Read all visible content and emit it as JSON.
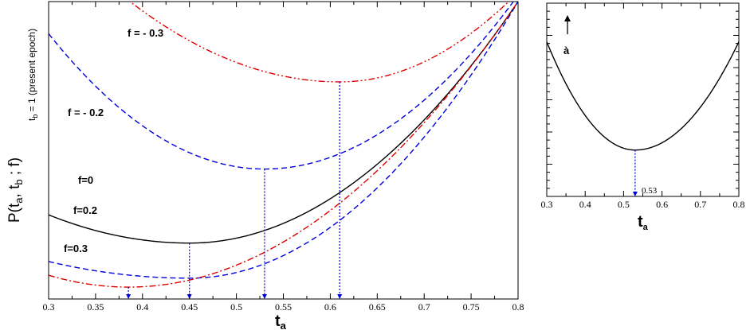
{
  "chart_data": [
    {
      "type": "line",
      "xlabel": "t",
      "xlabel_sub": "a",
      "ylabel": "P(t",
      "ylabel_parts": [
        "a",
        ", t",
        "b",
        " ; f)"
      ],
      "ylabel_note": "t",
      "ylabel_note_sub": "b",
      "ylabel_note_rest": "= 1 (present epoch)",
      "xlim": [
        0.3,
        0.8
      ],
      "ylim": [
        0,
        1
      ],
      "xticks": [
        "0.3",
        "0.35",
        "0.4",
        "0.45",
        "0.5",
        "0.55",
        "0.6",
        "0.65",
        "0.7",
        "0.75",
        "0.8"
      ],
      "grid": false,
      "series": [
        {
          "name": "f = - 0.3",
          "color": "#dd0000",
          "style": "dashdotdot",
          "min_x": 0.61,
          "min_y": 0.73,
          "left_y": 1.25,
          "right_x": 0.79,
          "right_y": 1.0
        },
        {
          "name": "f = - 0.2",
          "color": "#0000dd",
          "style": "dashed",
          "min_x": 0.53,
          "min_y": 0.437,
          "left_y": 0.892,
          "right_x": 0.795,
          "right_y": 1.0
        },
        {
          "name": "f=0",
          "color": "#000000",
          "style": "solid",
          "min_x": 0.45,
          "min_y": 0.188,
          "left_y": 0.283,
          "right_x": 0.8,
          "right_y": 1.0
        },
        {
          "name": "f=0.2",
          "color": "#0000dd",
          "style": "dashed",
          "min_x": 0.45,
          "min_y": 0.07,
          "left_y": 0.126,
          "right_x": 0.8,
          "right_y": 1.0
        },
        {
          "name": "f=0.3",
          "color": "#dd0000",
          "style": "dashdot",
          "min_x": 0.385,
          "min_y": 0.04,
          "left_y": 0.08,
          "right_x": 0.8,
          "right_y": 1.0
        }
      ],
      "minima_markers_x": [
        0.385,
        0.45,
        0.53,
        0.61
      ]
    },
    {
      "type": "line",
      "xlabel": "t",
      "xlabel_sub": "a",
      "xlim": [
        0.3,
        0.8
      ],
      "ylim": [
        0,
        1
      ],
      "xticks": [
        "0.3",
        "0.4",
        "0.5",
        "0.6",
        "0.7",
        "0.8"
      ],
      "grid": false,
      "series": [
        {
          "name": "",
          "color": "#000000",
          "style": "solid",
          "min_x": 0.53,
          "min_y": 0.24,
          "left_y": 0.8,
          "right_y": 0.8
        }
      ],
      "annotation_value": "0.53",
      "arrow_label": "à"
    }
  ]
}
